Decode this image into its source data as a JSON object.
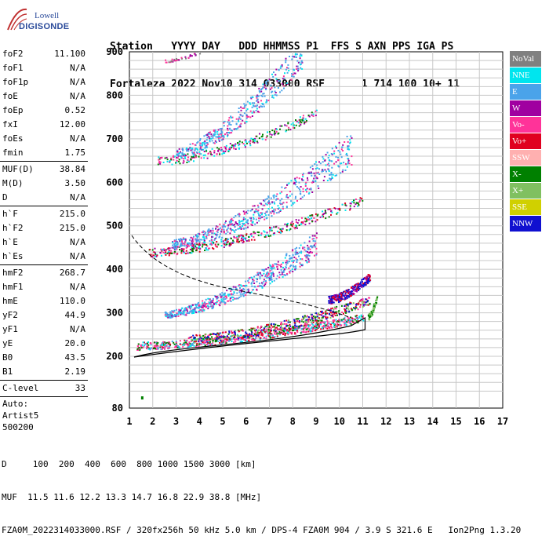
{
  "logo": {
    "line1": "Lowell",
    "line2": "DIGISONDE"
  },
  "header": {
    "line1": "Station   YYYY DAY   DDD HHMMSS P1  FFS S AXN PPS IGA PS",
    "line2": "Fortaleza 2022 Nov10 314 033000 RSF      1 714 100 10+ 11"
  },
  "params": [
    {
      "group": [
        {
          "name": "foF2",
          "value": "11.100"
        },
        {
          "name": "foF1",
          "value": "N/A"
        },
        {
          "name": "foF1p",
          "value": "N/A"
        },
        {
          "name": "foE",
          "value": "N/A"
        },
        {
          "name": "foEp",
          "value": "0.52"
        },
        {
          "name": "fxI",
          "value": "12.00"
        },
        {
          "name": "foEs",
          "value": "N/A"
        },
        {
          "name": "fmin",
          "value": "1.75"
        }
      ]
    },
    {
      "group": [
        {
          "name": "MUF(D)",
          "value": "38.84"
        },
        {
          "name": "M(D)",
          "value": "3.50"
        },
        {
          "name": "D",
          "value": "N/A"
        }
      ]
    },
    {
      "group": [
        {
          "name": "h`F",
          "value": "215.0"
        },
        {
          "name": "h`F2",
          "value": "215.0"
        },
        {
          "name": "h`E",
          "value": "N/A"
        },
        {
          "name": "h`Es",
          "value": "N/A"
        }
      ]
    },
    {
      "group": [
        {
          "name": "hmF2",
          "value": "268.7"
        },
        {
          "name": "hmF1",
          "value": "N/A"
        },
        {
          "name": "hmE",
          "value": "110.0"
        },
        {
          "name": "yF2",
          "value": "44.9"
        },
        {
          "name": "yF1",
          "value": "N/A"
        },
        {
          "name": "yE",
          "value": "20.0"
        },
        {
          "name": "B0",
          "value": "43.5"
        },
        {
          "name": "B1",
          "value": "2.19"
        }
      ]
    },
    {
      "group": [
        {
          "name": "C-level",
          "value": "33"
        }
      ]
    }
  ],
  "auto": {
    "l1": "Auto:",
    "l2": "Artist5",
    "l3": "500200"
  },
  "legend": [
    {
      "label": "NoVal",
      "color": "#808080"
    },
    {
      "label": "NNE",
      "color": "#00e5ee"
    },
    {
      "label": "E",
      "color": "#4aa3ea"
    },
    {
      "label": "W",
      "color": "#a000a0"
    },
    {
      "label": "Vo-",
      "color": "#ff3399"
    },
    {
      "label": "Vo+",
      "color": "#e00020"
    },
    {
      "label": "SSW",
      "color": "#ffb0b0"
    },
    {
      "label": "X-",
      "color": "#008000"
    },
    {
      "label": "X+",
      "color": "#80c060"
    },
    {
      "label": "SSE",
      "color": "#d0d000"
    },
    {
      "label": "NNW",
      "color": "#1010d0"
    }
  ],
  "axes": {
    "x_ticks": [
      "1",
      "2",
      "3",
      "4",
      "5",
      "6",
      "7",
      "8",
      "9",
      "10",
      "11",
      "12",
      "13",
      "14",
      "15",
      "16",
      "17"
    ],
    "y_ticks": [
      "900",
      "800",
      "700",
      "600",
      "500",
      "400",
      "300",
      "200",
      "80"
    ]
  },
  "footer": {
    "line1": "D     100  200  400  600  800 1000 1500 3000 [km]",
    "line2": "MUF  11.5 11.6 12.2 13.3 14.7 16.8 22.9 38.8 [MHz]",
    "line3": "FZA0M_2022314033000.RSF / 320fx256h 50 kHz 5.0 km / DPS-4 FZA0M 904 / 3.9 S 321.6 E   Ion2Png 1.3.20"
  }
}
